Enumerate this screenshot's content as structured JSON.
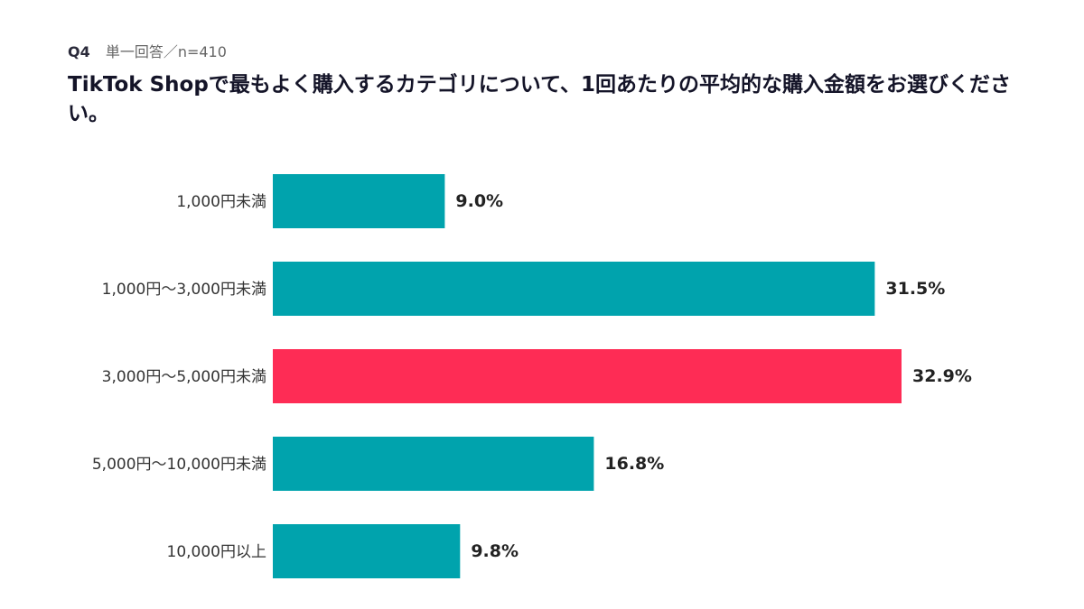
{
  "header": {
    "question_number": "Q4",
    "meta": "単一回答／n=410",
    "title": "TikTok Shopで最もよく購入するカテゴリについて、1回あたりの平均的な購入金額をお選びください。"
  },
  "colors": {
    "default_bar": "#00a3ad",
    "highlight_bar": "#fe2c55"
  },
  "chart_data": {
    "type": "bar",
    "orientation": "horizontal",
    "categories": [
      "1,000円未満",
      "1,000円～3,000円未満",
      "3,000円～5,000円未満",
      "5,000円～10,000円未満",
      "10,000円以上"
    ],
    "values": [
      9.0,
      31.5,
      32.9,
      16.8,
      9.8
    ],
    "value_labels": [
      "9.0%",
      "31.5%",
      "32.9%",
      "16.8%",
      "9.8%"
    ],
    "highlight_index": 2,
    "xlim": [
      0,
      32.9
    ],
    "grid": false,
    "legend": "none"
  }
}
